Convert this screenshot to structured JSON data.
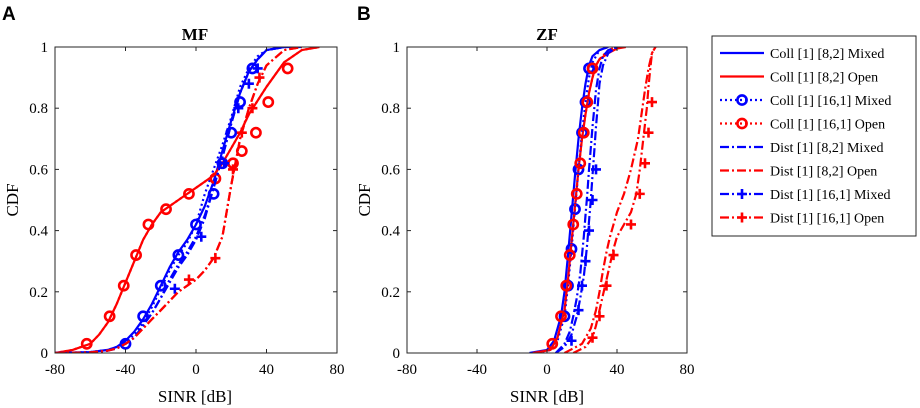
{
  "chart_data": [
    {
      "type": "line",
      "panel_label": "A",
      "title": "MF",
      "xlabel": "SINR [dB]",
      "ylabel": "CDF",
      "xlim": [
        -80,
        80
      ],
      "ylim": [
        0,
        1
      ],
      "xticks": [
        "-80",
        "-40",
        "0",
        "40",
        "80"
      ],
      "yticks": [
        "0",
        "0.2",
        "0.4",
        "0.6",
        "0.8",
        "1"
      ],
      "grid": false,
      "series": [
        {
          "name": "Coll [1] [8,2] Mixed",
          "color": "#0000ff",
          "dash": "solid",
          "marker": "none",
          "x": [
            -80,
            -60,
            -50,
            -45,
            -40,
            -35,
            -30,
            -25,
            -20,
            -15,
            -10,
            -5,
            0,
            5,
            10,
            15,
            20,
            25,
            30,
            35,
            40,
            50,
            60
          ],
          "y": [
            0,
            0.003,
            0.01,
            0.02,
            0.04,
            0.07,
            0.11,
            0.16,
            0.22,
            0.28,
            0.33,
            0.37,
            0.42,
            0.48,
            0.56,
            0.66,
            0.76,
            0.85,
            0.92,
            0.96,
            0.99,
            1,
            1
          ]
        },
        {
          "name": "Coll [1] [8,2] Open",
          "color": "#ff0000",
          "dash": "solid",
          "marker": "none",
          "x": [
            -80,
            -70,
            -60,
            -55,
            -50,
            -45,
            -40,
            -35,
            -30,
            -25,
            -20,
            -15,
            -10,
            -5,
            0,
            10,
            15,
            20,
            25,
            30,
            40,
            50,
            60,
            70
          ],
          "y": [
            0,
            0.01,
            0.03,
            0.06,
            0.1,
            0.16,
            0.23,
            0.3,
            0.37,
            0.42,
            0.46,
            0.48,
            0.5,
            0.52,
            0.54,
            0.58,
            0.62,
            0.67,
            0.72,
            0.78,
            0.87,
            0.95,
            0.99,
            1
          ]
        },
        {
          "name": "Coll [1] [16,1] Mixed",
          "color": "#0000ff",
          "dash": "dot",
          "marker": "o",
          "x": [
            -80,
            -60,
            -50,
            -45,
            -40,
            -35,
            -30,
            -25,
            -20,
            -15,
            -10,
            -5,
            0,
            5,
            10,
            15,
            20,
            25,
            30,
            35,
            40,
            50
          ],
          "y": [
            0,
            0.003,
            0.01,
            0.02,
            0.035,
            0.06,
            0.1,
            0.15,
            0.21,
            0.27,
            0.32,
            0.36,
            0.42,
            0.52,
            0.6,
            0.68,
            0.77,
            0.87,
            0.93,
            0.97,
            0.99,
            1
          ],
          "marker_x": [
            -40,
            -30,
            -20,
            -10,
            0,
            10,
            15,
            20,
            25,
            32
          ],
          "marker_y": [
            0.03,
            0.12,
            0.22,
            0.32,
            0.42,
            0.52,
            0.62,
            0.72,
            0.82,
            0.93
          ]
        },
        {
          "name": "Coll [1] [16,1] Open",
          "color": "#ff0000",
          "dash": "dot",
          "marker": "o",
          "x": [
            -80,
            -70,
            -60,
            -55,
            -50,
            -45,
            -40,
            -35,
            -30,
            -25,
            -20,
            -15,
            -10,
            -5,
            0,
            10,
            15,
            20,
            25,
            30,
            40,
            50,
            60,
            70
          ],
          "y": [
            0,
            0.01,
            0.03,
            0.06,
            0.1,
            0.16,
            0.23,
            0.3,
            0.37,
            0.42,
            0.46,
            0.48,
            0.5,
            0.52,
            0.54,
            0.58,
            0.62,
            0.67,
            0.72,
            0.78,
            0.87,
            0.95,
            0.99,
            1
          ],
          "marker_x": [
            -62,
            -49,
            -41,
            -34,
            -27,
            -17,
            -4,
            11,
            21,
            26,
            34,
            41,
            52
          ],
          "marker_y": [
            0.03,
            0.12,
            0.22,
            0.32,
            0.42,
            0.47,
            0.52,
            0.57,
            0.62,
            0.66,
            0.72,
            0.82,
            0.93
          ]
        },
        {
          "name": "Dist [1] [8,2] Mixed",
          "color": "#0000ff",
          "dash": "dashdot",
          "marker": "none",
          "x": [
            -80,
            -60,
            -50,
            -45,
            -40,
            -35,
            -30,
            -25,
            -20,
            -15,
            -10,
            -5,
            0,
            5,
            10,
            15,
            20,
            25,
            30,
            35,
            40,
            50
          ],
          "y": [
            0,
            0.002,
            0.008,
            0.015,
            0.03,
            0.05,
            0.09,
            0.13,
            0.18,
            0.24,
            0.29,
            0.33,
            0.38,
            0.45,
            0.54,
            0.64,
            0.75,
            0.85,
            0.92,
            0.96,
            0.99,
            1
          ]
        },
        {
          "name": "Dist [1] [8,2] Open",
          "color": "#ff0000",
          "dash": "dashdot",
          "marker": "none",
          "x": [
            -80,
            -60,
            -50,
            -45,
            -40,
            -35,
            -30,
            -25,
            -20,
            -15,
            -10,
            -5,
            0,
            5,
            10,
            15,
            20,
            25,
            30,
            35,
            40,
            50,
            60
          ],
          "y": [
            0,
            0.002,
            0.008,
            0.015,
            0.03,
            0.05,
            0.08,
            0.11,
            0.14,
            0.17,
            0.2,
            0.22,
            0.24,
            0.27,
            0.31,
            0.38,
            0.55,
            0.7,
            0.8,
            0.88,
            0.94,
            0.99,
            1
          ]
        },
        {
          "name": "Dist [1] [16,1] Mixed",
          "color": "#0000ff",
          "dash": "dashdot",
          "marker": "+",
          "x": [
            -80,
            -60,
            -50,
            -45,
            -40,
            -35,
            -30,
            -25,
            -20,
            -15,
            -10,
            -5,
            0,
            5,
            10,
            15,
            20,
            25,
            30,
            35,
            40,
            50
          ],
          "y": [
            0,
            0.002,
            0.008,
            0.015,
            0.03,
            0.05,
            0.09,
            0.13,
            0.18,
            0.23,
            0.28,
            0.32,
            0.37,
            0.44,
            0.54,
            0.64,
            0.75,
            0.85,
            0.92,
            0.96,
            0.99,
            1
          ],
          "marker_x": [
            -12,
            3,
            16,
            24,
            30,
            35
          ],
          "marker_y": [
            0.21,
            0.38,
            0.62,
            0.8,
            0.88,
            0.93
          ]
        },
        {
          "name": "Dist [1] [16,1] Open",
          "color": "#ff0000",
          "dash": "dashdot",
          "marker": "+",
          "x": [
            -80,
            -60,
            -50,
            -45,
            -40,
            -35,
            -30,
            -25,
            -20,
            -15,
            -10,
            -5,
            0,
            5,
            10,
            15,
            20,
            25,
            30,
            35,
            40,
            50,
            60
          ],
          "y": [
            0,
            0.002,
            0.008,
            0.015,
            0.03,
            0.05,
            0.08,
            0.11,
            0.14,
            0.17,
            0.2,
            0.22,
            0.24,
            0.27,
            0.31,
            0.38,
            0.55,
            0.7,
            0.8,
            0.88,
            0.94,
            0.99,
            1
          ],
          "marker_x": [
            -4,
            11,
            21,
            26,
            32,
            36
          ],
          "marker_y": [
            0.24,
            0.31,
            0.6,
            0.72,
            0.8,
            0.9
          ]
        }
      ]
    },
    {
      "type": "line",
      "panel_label": "B",
      "title": "ZF",
      "xlabel": "SINR [dB]",
      "ylabel": "CDF",
      "xlim": [
        -80,
        80
      ],
      "ylim": [
        0,
        1
      ],
      "xticks": [
        "-80",
        "-40",
        "0",
        "40",
        "80"
      ],
      "yticks": [
        "0",
        "0.2",
        "0.4",
        "0.6",
        "0.8",
        "1"
      ],
      "grid": false,
      "series": [
        {
          "name": "Coll [1] [8,2] Mixed",
          "color": "#0000ff",
          "dash": "solid",
          "marker": "none",
          "x": [
            -10,
            0,
            4,
            8,
            10,
            12,
            14,
            16,
            18,
            20,
            22,
            24,
            26,
            30,
            35
          ],
          "y": [
            0,
            0.01,
            0.04,
            0.12,
            0.2,
            0.32,
            0.45,
            0.58,
            0.7,
            0.8,
            0.88,
            0.94,
            0.97,
            0.99,
            1
          ]
        },
        {
          "name": "Coll [1] [8,2] Open",
          "color": "#ff0000",
          "dash": "solid",
          "marker": "none",
          "x": [
            -8,
            2,
            6,
            10,
            12,
            14,
            16,
            18,
            20,
            22,
            24,
            26,
            28,
            30,
            35,
            40,
            45
          ],
          "y": [
            0,
            0.01,
            0.05,
            0.14,
            0.24,
            0.36,
            0.48,
            0.6,
            0.7,
            0.78,
            0.85,
            0.9,
            0.94,
            0.96,
            0.98,
            0.995,
            1
          ]
        },
        {
          "name": "Coll [1] [16,1] Mixed",
          "color": "#0000ff",
          "dash": "dot",
          "marker": "o",
          "x": [
            -8,
            2,
            6,
            10,
            12,
            14,
            16,
            18,
            20,
            22,
            24,
            26,
            30,
            35
          ],
          "y": [
            0,
            0.01,
            0.04,
            0.12,
            0.22,
            0.34,
            0.47,
            0.6,
            0.72,
            0.82,
            0.9,
            0.95,
            0.99,
            1
          ],
          "marker_x": [
            10,
            12,
            14,
            16,
            18,
            20,
            22,
            24
          ],
          "marker_y": [
            0.12,
            0.22,
            0.34,
            0.47,
            0.6,
            0.72,
            0.82,
            0.93
          ]
        },
        {
          "name": "Coll [1] [16,1] Open",
          "color": "#ff0000",
          "dash": "dot",
          "marker": "o",
          "x": [
            -8,
            2,
            6,
            10,
            12,
            14,
            16,
            18,
            20,
            22,
            24,
            26,
            28,
            30,
            35,
            40
          ],
          "y": [
            0,
            0.01,
            0.05,
            0.14,
            0.24,
            0.36,
            0.48,
            0.6,
            0.7,
            0.78,
            0.85,
            0.9,
            0.94,
            0.96,
            0.99,
            1
          ],
          "marker_x": [
            3,
            8,
            11,
            13,
            15,
            17,
            19,
            21,
            23,
            26
          ],
          "marker_y": [
            0.03,
            0.12,
            0.22,
            0.32,
            0.42,
            0.52,
            0.62,
            0.72,
            0.82,
            0.93
          ]
        },
        {
          "name": "Dist [1] [8,2] Mixed",
          "color": "#0000ff",
          "dash": "dashdot",
          "marker": "none",
          "x": [
            5,
            10,
            13,
            15,
            17,
            19,
            20,
            21,
            22,
            23,
            24,
            25,
            26,
            27,
            28,
            30,
            32,
            35,
            40
          ],
          "y": [
            0,
            0.03,
            0.07,
            0.12,
            0.18,
            0.26,
            0.32,
            0.38,
            0.45,
            0.52,
            0.6,
            0.67,
            0.74,
            0.8,
            0.86,
            0.93,
            0.97,
            0.99,
            1
          ]
        },
        {
          "name": "Dist [1] [8,2] Open",
          "color": "#ff0000",
          "dash": "dashdot",
          "marker": "none",
          "x": [
            10,
            20,
            25,
            28,
            30,
            32,
            34,
            36,
            38,
            40,
            44,
            48,
            52,
            54,
            56,
            58,
            60,
            62
          ],
          "y": [
            0,
            0.03,
            0.08,
            0.14,
            0.2,
            0.27,
            0.33,
            0.38,
            0.42,
            0.46,
            0.52,
            0.6,
            0.7,
            0.78,
            0.86,
            0.93,
            0.98,
            1
          ]
        },
        {
          "name": "Dist [1] [16,1] Mixed",
          "color": "#0000ff",
          "dash": "dashdot",
          "marker": "+",
          "x": [
            5,
            10,
            14,
            17,
            19,
            21,
            22,
            23,
            24,
            25,
            26,
            27,
            28,
            29,
            30,
            32,
            35,
            40
          ],
          "y": [
            0,
            0.02,
            0.06,
            0.12,
            0.18,
            0.25,
            0.3,
            0.36,
            0.43,
            0.5,
            0.58,
            0.66,
            0.74,
            0.81,
            0.88,
            0.94,
            0.98,
            1
          ],
          "marker_x": [
            14,
            18,
            20,
            22,
            24,
            26,
            28
          ],
          "marker_y": [
            0.04,
            0.14,
            0.22,
            0.3,
            0.4,
            0.5,
            0.6
          ]
        },
        {
          "name": "Dist [1] [16,1] Open",
          "color": "#ff0000",
          "dash": "dashdot",
          "marker": "+",
          "x": [
            15,
            22,
            26,
            28,
            30,
            32,
            34,
            36,
            38,
            40,
            44,
            48,
            51,
            53,
            55,
            57,
            58,
            59,
            60,
            62
          ],
          "y": [
            0,
            0.02,
            0.05,
            0.09,
            0.14,
            0.19,
            0.24,
            0.29,
            0.34,
            0.38,
            0.42,
            0.46,
            0.52,
            0.6,
            0.7,
            0.8,
            0.87,
            0.93,
            0.98,
            1
          ],
          "marker_x": [
            26,
            30,
            34,
            38,
            48,
            53,
            56,
            58,
            60
          ],
          "marker_y": [
            0.05,
            0.12,
            0.22,
            0.32,
            0.42,
            0.52,
            0.62,
            0.72,
            0.82
          ]
        }
      ]
    }
  ]
}
